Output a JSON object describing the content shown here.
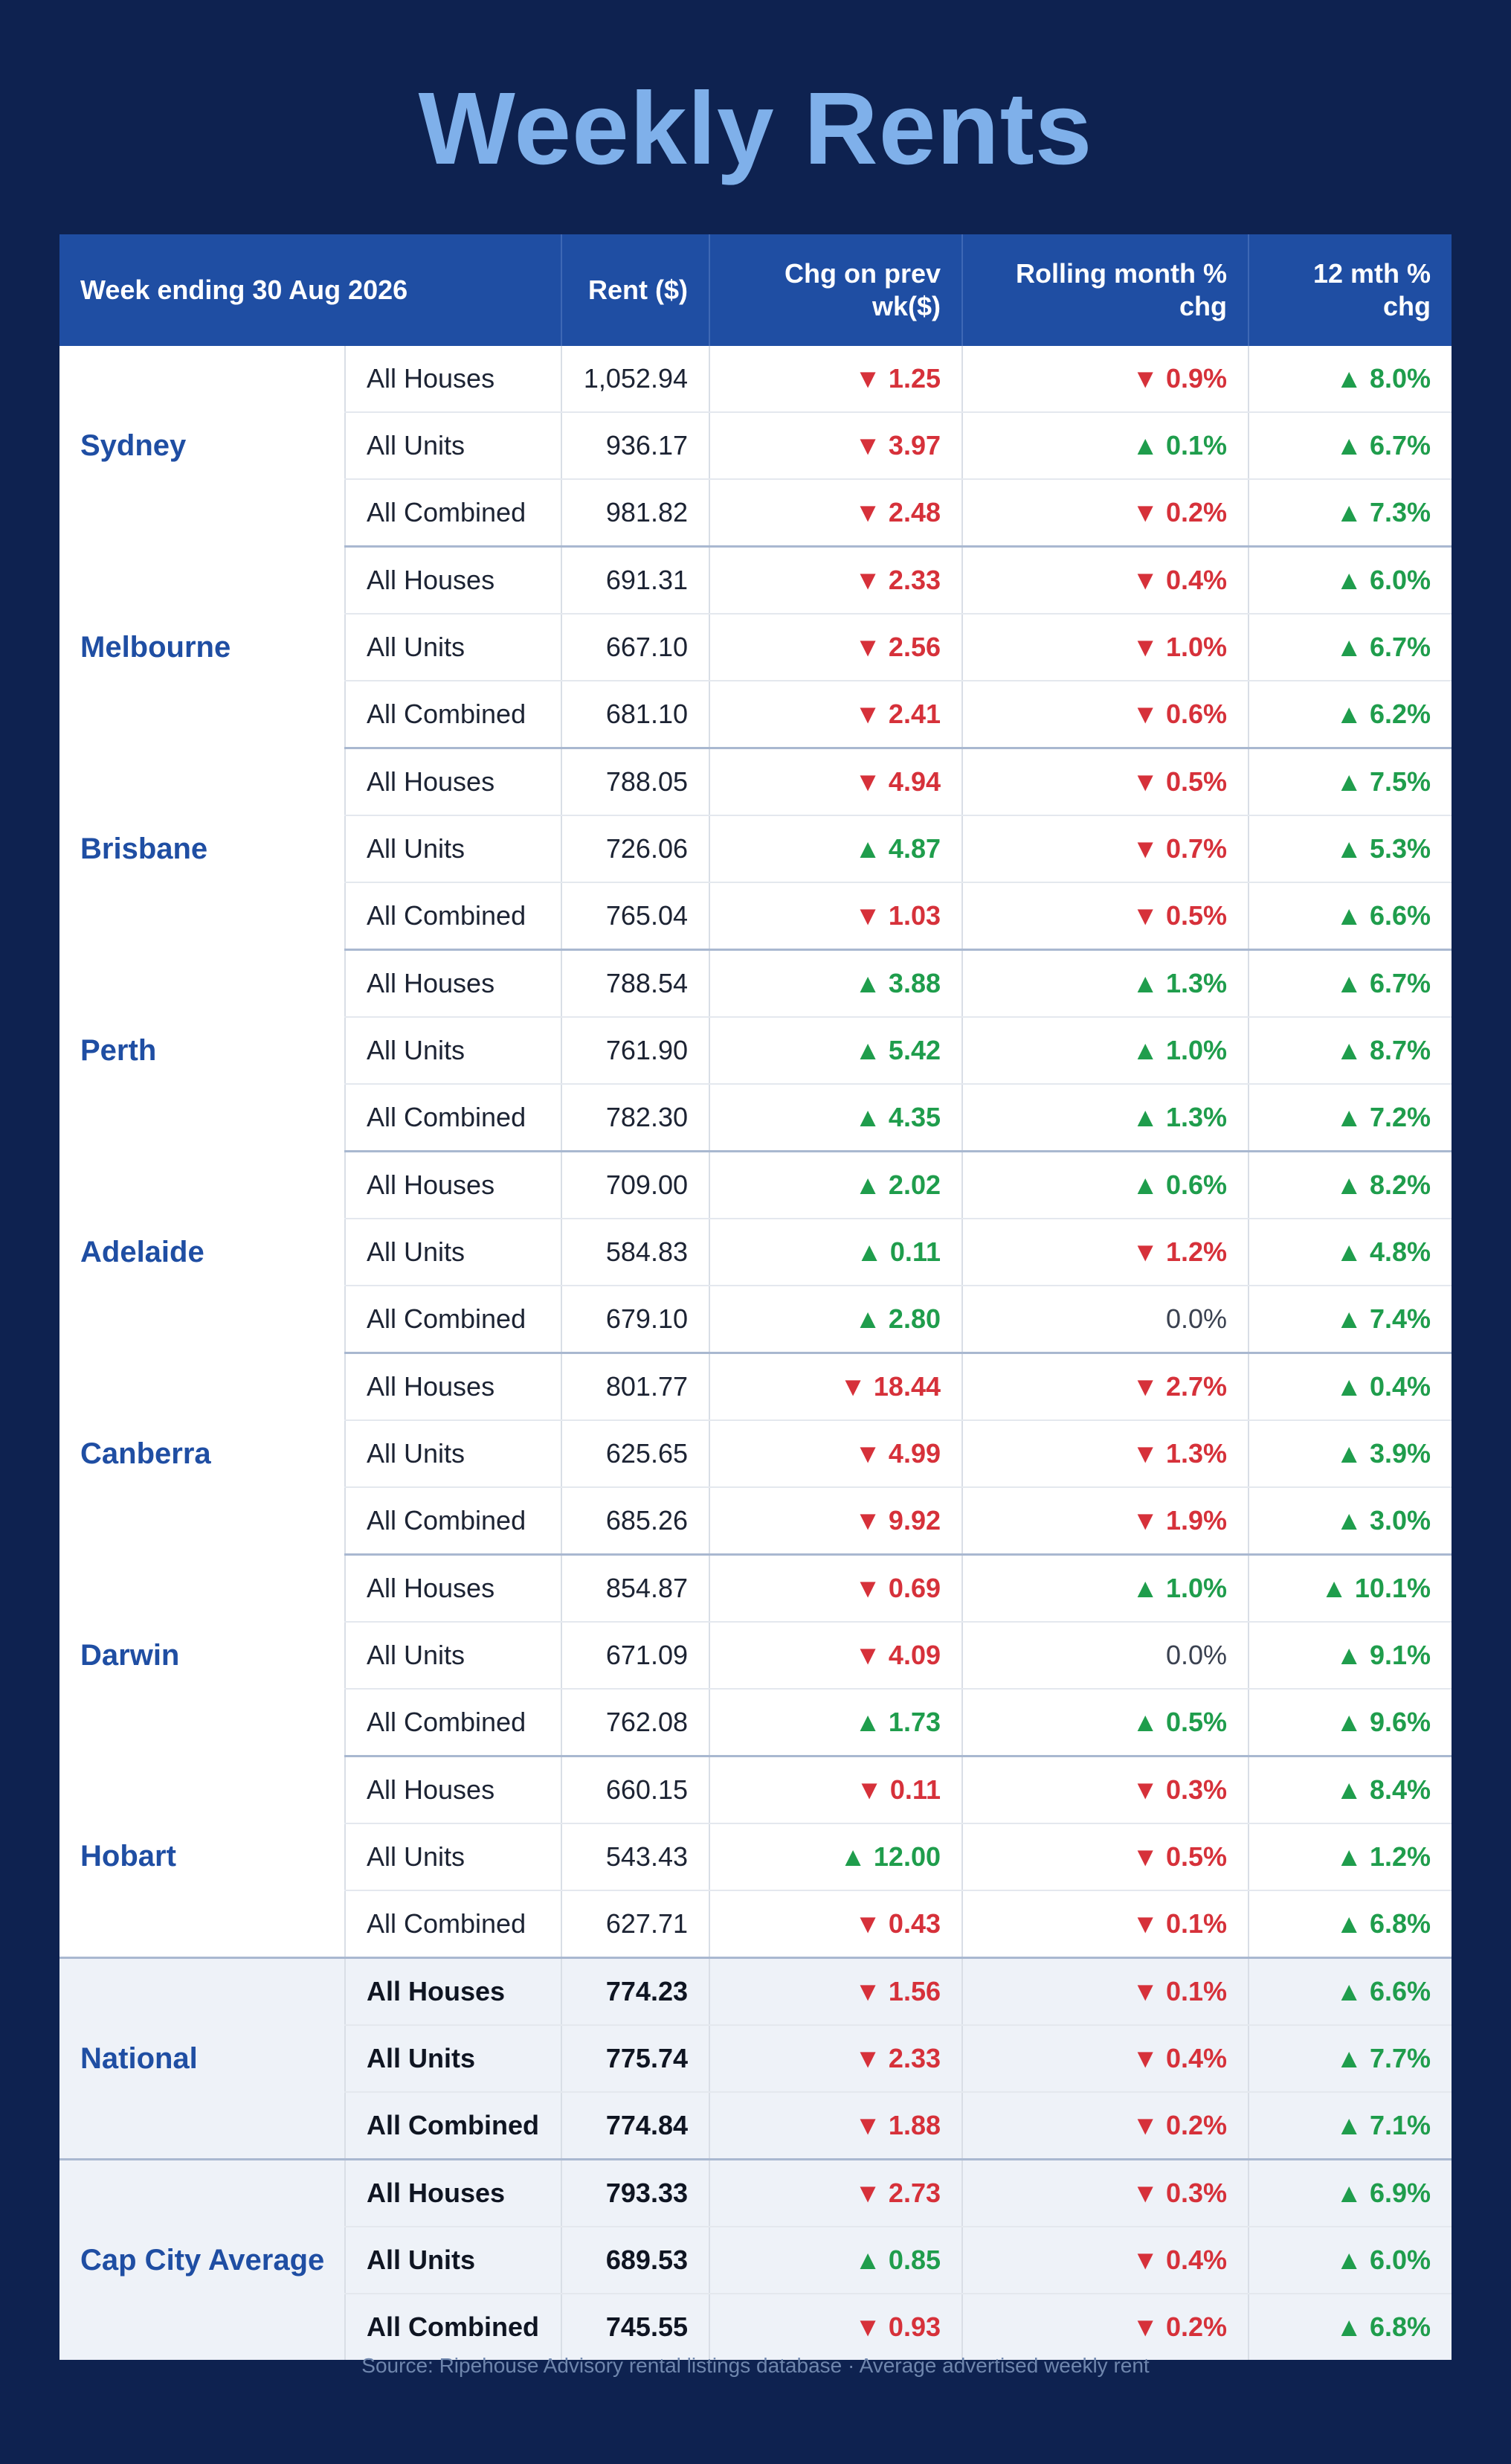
{
  "title": "Weekly Rents",
  "table": {
    "headers": {
      "week": "Week ending 30 Aug 2026",
      "rent": "Rent ($)",
      "chg_wk": "Chg on prev wk($)",
      "chg_month": "Rolling month % chg",
      "chg_12m": "12 mth % chg"
    },
    "groups": [
      {
        "city": "Sydney",
        "summary": false,
        "rows": [
          {
            "type": "All Houses",
            "rent": "1,052.94",
            "wk": "▼ 1.25",
            "mth": "▼ 0.9%",
            "yr": "▲ 8.0%"
          },
          {
            "type": "All Units",
            "rent": "936.17",
            "wk": "▼ 3.97",
            "mth": "▲ 0.1%",
            "yr": "▲ 6.7%"
          },
          {
            "type": "All Combined",
            "rent": "981.82",
            "wk": "▼ 2.48",
            "mth": "▼ 0.2%",
            "yr": "▲ 7.3%"
          }
        ]
      },
      {
        "city": "Melbourne",
        "summary": false,
        "rows": [
          {
            "type": "All Houses",
            "rent": "691.31",
            "wk": "▼ 2.33",
            "mth": "▼ 0.4%",
            "yr": "▲ 6.0%"
          },
          {
            "type": "All Units",
            "rent": "667.10",
            "wk": "▼ 2.56",
            "mth": "▼ 1.0%",
            "yr": "▲ 6.7%"
          },
          {
            "type": "All Combined",
            "rent": "681.10",
            "wk": "▼ 2.41",
            "mth": "▼ 0.6%",
            "yr": "▲ 6.2%"
          }
        ]
      },
      {
        "city": "Brisbane",
        "summary": false,
        "rows": [
          {
            "type": "All Houses",
            "rent": "788.05",
            "wk": "▼ 4.94",
            "mth": "▼ 0.5%",
            "yr": "▲ 7.5%"
          },
          {
            "type": "All Units",
            "rent": "726.06",
            "wk": "▲ 4.87",
            "mth": "▼ 0.7%",
            "yr": "▲ 5.3%"
          },
          {
            "type": "All Combined",
            "rent": "765.04",
            "wk": "▼ 1.03",
            "mth": "▼ 0.5%",
            "yr": "▲ 6.6%"
          }
        ]
      },
      {
        "city": "Perth",
        "summary": false,
        "rows": [
          {
            "type": "All Houses",
            "rent": "788.54",
            "wk": "▲ 3.88",
            "mth": "▲ 1.3%",
            "yr": "▲ 6.7%"
          },
          {
            "type": "All Units",
            "rent": "761.90",
            "wk": "▲ 5.42",
            "mth": "▲ 1.0%",
            "yr": "▲ 8.7%"
          },
          {
            "type": "All Combined",
            "rent": "782.30",
            "wk": "▲ 4.35",
            "mth": "▲ 1.3%",
            "yr": "▲ 7.2%"
          }
        ]
      },
      {
        "city": "Adelaide",
        "summary": false,
        "rows": [
          {
            "type": "All Houses",
            "rent": "709.00",
            "wk": "▲ 2.02",
            "mth": "▲ 0.6%",
            "yr": "▲ 8.2%"
          },
          {
            "type": "All Units",
            "rent": "584.83",
            "wk": "▲ 0.11",
            "mth": "▼ 1.2%",
            "yr": "▲ 4.8%"
          },
          {
            "type": "All Combined",
            "rent": "679.10",
            "wk": "▲ 2.80",
            "mth": "0.0%",
            "yr": "▲ 7.4%"
          }
        ]
      },
      {
        "city": "Canberra",
        "summary": false,
        "rows": [
          {
            "type": "All Houses",
            "rent": "801.77",
            "wk": "▼ 18.44",
            "mth": "▼ 2.7%",
            "yr": "▲ 0.4%"
          },
          {
            "type": "All Units",
            "rent": "625.65",
            "wk": "▼ 4.99",
            "mth": "▼ 1.3%",
            "yr": "▲ 3.9%"
          },
          {
            "type": "All Combined",
            "rent": "685.26",
            "wk": "▼ 9.92",
            "mth": "▼ 1.9%",
            "yr": "▲ 3.0%"
          }
        ]
      },
      {
        "city": "Darwin",
        "summary": false,
        "rows": [
          {
            "type": "All Houses",
            "rent": "854.87",
            "wk": "▼ 0.69",
            "mth": "▲ 1.0%",
            "yr": "▲ 10.1%"
          },
          {
            "type": "All Units",
            "rent": "671.09",
            "wk": "▼ 4.09",
            "mth": "0.0%",
            "yr": "▲ 9.1%"
          },
          {
            "type": "All Combined",
            "rent": "762.08",
            "wk": "▲ 1.73",
            "mth": "▲ 0.5%",
            "yr": "▲ 9.6%"
          }
        ]
      },
      {
        "city": "Hobart",
        "summary": false,
        "rows": [
          {
            "type": "All Houses",
            "rent": "660.15",
            "wk": "▼ 0.11",
            "mth": "▼ 0.3%",
            "yr": "▲ 8.4%"
          },
          {
            "type": "All Units",
            "rent": "543.43",
            "wk": "▲ 12.00",
            "mth": "▼ 0.5%",
            "yr": "▲ 1.2%"
          },
          {
            "type": "All Combined",
            "rent": "627.71",
            "wk": "▼ 0.43",
            "mth": "▼ 0.1%",
            "yr": "▲ 6.8%"
          }
        ]
      },
      {
        "city": "National",
        "summary": true,
        "rows": [
          {
            "type": "All Houses",
            "rent": "774.23",
            "wk": "▼ 1.56",
            "mth": "▼ 0.1%",
            "yr": "▲ 6.6%"
          },
          {
            "type": "All Units",
            "rent": "775.74",
            "wk": "▼ 2.33",
            "mth": "▼ 0.4%",
            "yr": "▲ 7.7%"
          },
          {
            "type": "All Combined",
            "rent": "774.84",
            "wk": "▼ 1.88",
            "mth": "▼ 0.2%",
            "yr": "▲ 7.1%"
          }
        ]
      },
      {
        "city": "Cap City Average",
        "summary": true,
        "rows": [
          {
            "type": "All Houses",
            "rent": "793.33",
            "wk": "▼ 2.73",
            "mth": "▼ 0.3%",
            "yr": "▲ 6.9%"
          },
          {
            "type": "All Units",
            "rent": "689.53",
            "wk": "▲ 0.85",
            "mth": "▼ 0.4%",
            "yr": "▲ 6.0%"
          },
          {
            "type": "All Combined",
            "rent": "745.55",
            "wk": "▼ 0.93",
            "mth": "▼ 0.2%",
            "yr": "▲ 6.8%"
          }
        ]
      }
    ]
  },
  "colors": {
    "background": "#0e2250",
    "title": "#7fb0ea",
    "header": "#1f4ea3",
    "up": "#1f9d4c",
    "down": "#d6313a",
    "city": "#1f4ea3"
  },
  "source": "Source: Ripehouse Advisory rental listings database · Average advertised weekly rent"
}
